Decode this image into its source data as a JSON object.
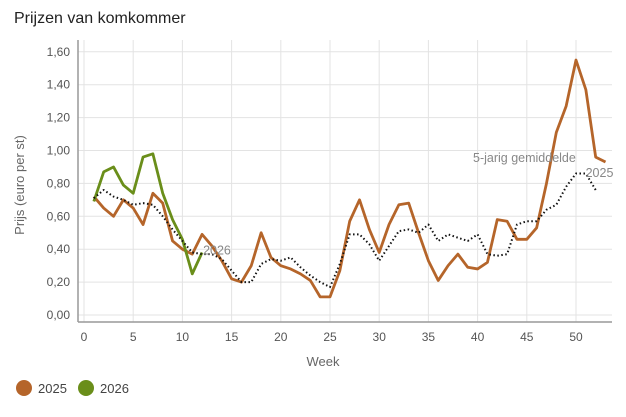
{
  "chart_data": {
    "type": "line",
    "title": "Prijzen van komkommer",
    "xlabel": "Week",
    "ylabel": "Prijs (euro per st)",
    "xlim": [
      0,
      53
    ],
    "ylim": [
      0,
      1.6
    ],
    "xticks": [
      "0",
      "5",
      "10",
      "15",
      "20",
      "25",
      "30",
      "35",
      "40",
      "45",
      "50"
    ],
    "yticks": [
      "0,00",
      "0,20",
      "0,40",
      "0,60",
      "0,80",
      "1,00",
      "1,20",
      "1,40",
      "1,60"
    ],
    "grid": true,
    "legend_placement": "bottom-left",
    "series": [
      {
        "name": "2025",
        "color": "#b5652a",
        "style": "solid",
        "label": "2025",
        "x": [
          1,
          2,
          3,
          4,
          5,
          6,
          7,
          8,
          9,
          10,
          11,
          12,
          13,
          14,
          15,
          16,
          17,
          18,
          19,
          20,
          21,
          22,
          23,
          24,
          25,
          26,
          27,
          28,
          29,
          30,
          31,
          32,
          33,
          34,
          35,
          36,
          37,
          38,
          39,
          40,
          41,
          42,
          43,
          44,
          45,
          46,
          47,
          48,
          49,
          50,
          51,
          52,
          53
        ],
        "values": [
          0.72,
          0.65,
          0.6,
          0.7,
          0.65,
          0.55,
          0.74,
          0.68,
          0.45,
          0.4,
          0.37,
          0.49,
          0.42,
          0.33,
          0.22,
          0.2,
          0.3,
          0.5,
          0.35,
          0.3,
          0.28,
          0.25,
          0.21,
          0.11,
          0.11,
          0.27,
          0.57,
          0.7,
          0.52,
          0.38,
          0.55,
          0.67,
          0.68,
          0.5,
          0.33,
          0.21,
          0.3,
          0.37,
          0.29,
          0.28,
          0.32,
          0.58,
          0.57,
          0.46,
          0.46,
          0.53,
          0.8,
          1.11,
          1.27,
          1.55,
          1.37,
          0.96,
          0.93
        ]
      },
      {
        "name": "2026",
        "color": "#6a8e1a",
        "style": "solid",
        "label": "2026",
        "x": [
          1,
          2,
          3,
          4,
          5,
          6,
          7,
          8,
          9,
          10,
          11,
          12
        ],
        "values": [
          0.69,
          0.87,
          0.9,
          0.79,
          0.74,
          0.96,
          0.98,
          0.74,
          0.58,
          0.46,
          0.25,
          0.38
        ]
      },
      {
        "name": "5-jarig gemiddelde",
        "color": "#111111",
        "style": "dotted",
        "label": "5-jarig gemiddelde",
        "x": [
          1,
          2,
          3,
          4,
          5,
          6,
          7,
          8,
          9,
          10,
          11,
          12,
          13,
          14,
          15,
          16,
          17,
          18,
          19,
          20,
          21,
          22,
          23,
          24,
          25,
          26,
          27,
          28,
          29,
          30,
          31,
          32,
          33,
          34,
          35,
          36,
          37,
          38,
          39,
          40,
          41,
          42,
          43,
          44,
          45,
          46,
          47,
          48,
          49,
          50,
          51,
          52
        ],
        "values": [
          0.71,
          0.76,
          0.72,
          0.7,
          0.67,
          0.68,
          0.67,
          0.6,
          0.52,
          0.45,
          0.38,
          0.37,
          0.37,
          0.34,
          0.27,
          0.2,
          0.2,
          0.31,
          0.34,
          0.33,
          0.35,
          0.29,
          0.24,
          0.2,
          0.17,
          0.31,
          0.49,
          0.49,
          0.43,
          0.33,
          0.42,
          0.51,
          0.52,
          0.5,
          0.55,
          0.45,
          0.49,
          0.47,
          0.45,
          0.49,
          0.37,
          0.36,
          0.37,
          0.55,
          0.57,
          0.57,
          0.64,
          0.67,
          0.78,
          0.86,
          0.86,
          0.76
        ]
      }
    ]
  }
}
